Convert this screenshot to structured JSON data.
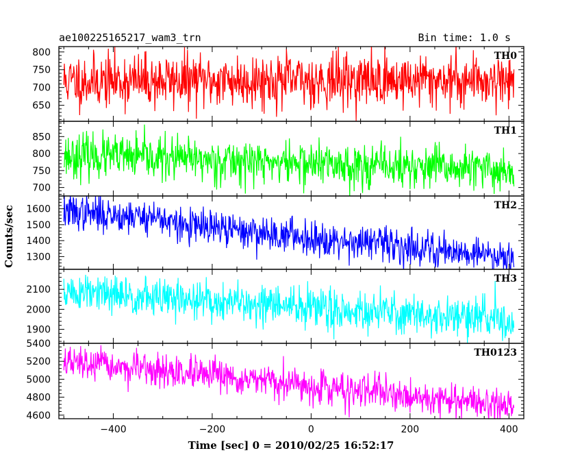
{
  "chart_data": {
    "type": "line",
    "title": "ae100225165217_wam3_trn",
    "subtitle": "Bin time: 1.0 s",
    "xlabel": "Time [sec] 0 = 2010/02/25 16:52:17",
    "ylabel": "Counts/sec",
    "xlim": [
      -510,
      430
    ],
    "xticks": [
      -400,
      -200,
      0,
      200,
      400
    ],
    "x_range": [
      -500,
      410
    ],
    "panels": [
      {
        "name": "TH0",
        "color": "#ff0000",
        "ylim": [
          605,
          815
        ],
        "yticks": [
          650,
          700,
          750,
          800
        ],
        "trend": [
          [
            -500,
            718
          ],
          [
            410,
            722
          ]
        ],
        "noise": 38,
        "seed": 11
      },
      {
        "name": "TH1",
        "color": "#00ff00",
        "ylim": [
          675,
          895
        ],
        "yticks": [
          700,
          750,
          800,
          850
        ],
        "trend": [
          [
            -500,
            795
          ],
          [
            410,
            750
          ]
        ],
        "noise": 32,
        "seed": 23
      },
      {
        "name": "TH2",
        "color": "#0000ff",
        "ylim": [
          1220,
          1680
        ],
        "yticks": [
          1300,
          1400,
          1500,
          1600
        ],
        "trend": [
          [
            -500,
            1580
          ],
          [
            -300,
            1545
          ],
          [
            -280,
            1500
          ],
          [
            0,
            1420
          ],
          [
            410,
            1300
          ]
        ],
        "noise": 55,
        "seed": 37
      },
      {
        "name": "TH3",
        "color": "#00ffff",
        "ylim": [
          1830,
          2200
        ],
        "yticks": [
          1900,
          2000,
          2100
        ],
        "trend": [
          [
            -500,
            2085
          ],
          [
            410,
            1945
          ]
        ],
        "noise": 50,
        "seed": 51
      },
      {
        "name": "TH0123",
        "color": "#ff00ff",
        "ylim": [
          4560,
          5400
        ],
        "yticks": [
          4600,
          4800,
          5000,
          5200,
          5400
        ],
        "trend": [
          [
            -500,
            5190
          ],
          [
            410,
            4700
          ]
        ],
        "noise": 90,
        "seed": 67
      }
    ]
  }
}
